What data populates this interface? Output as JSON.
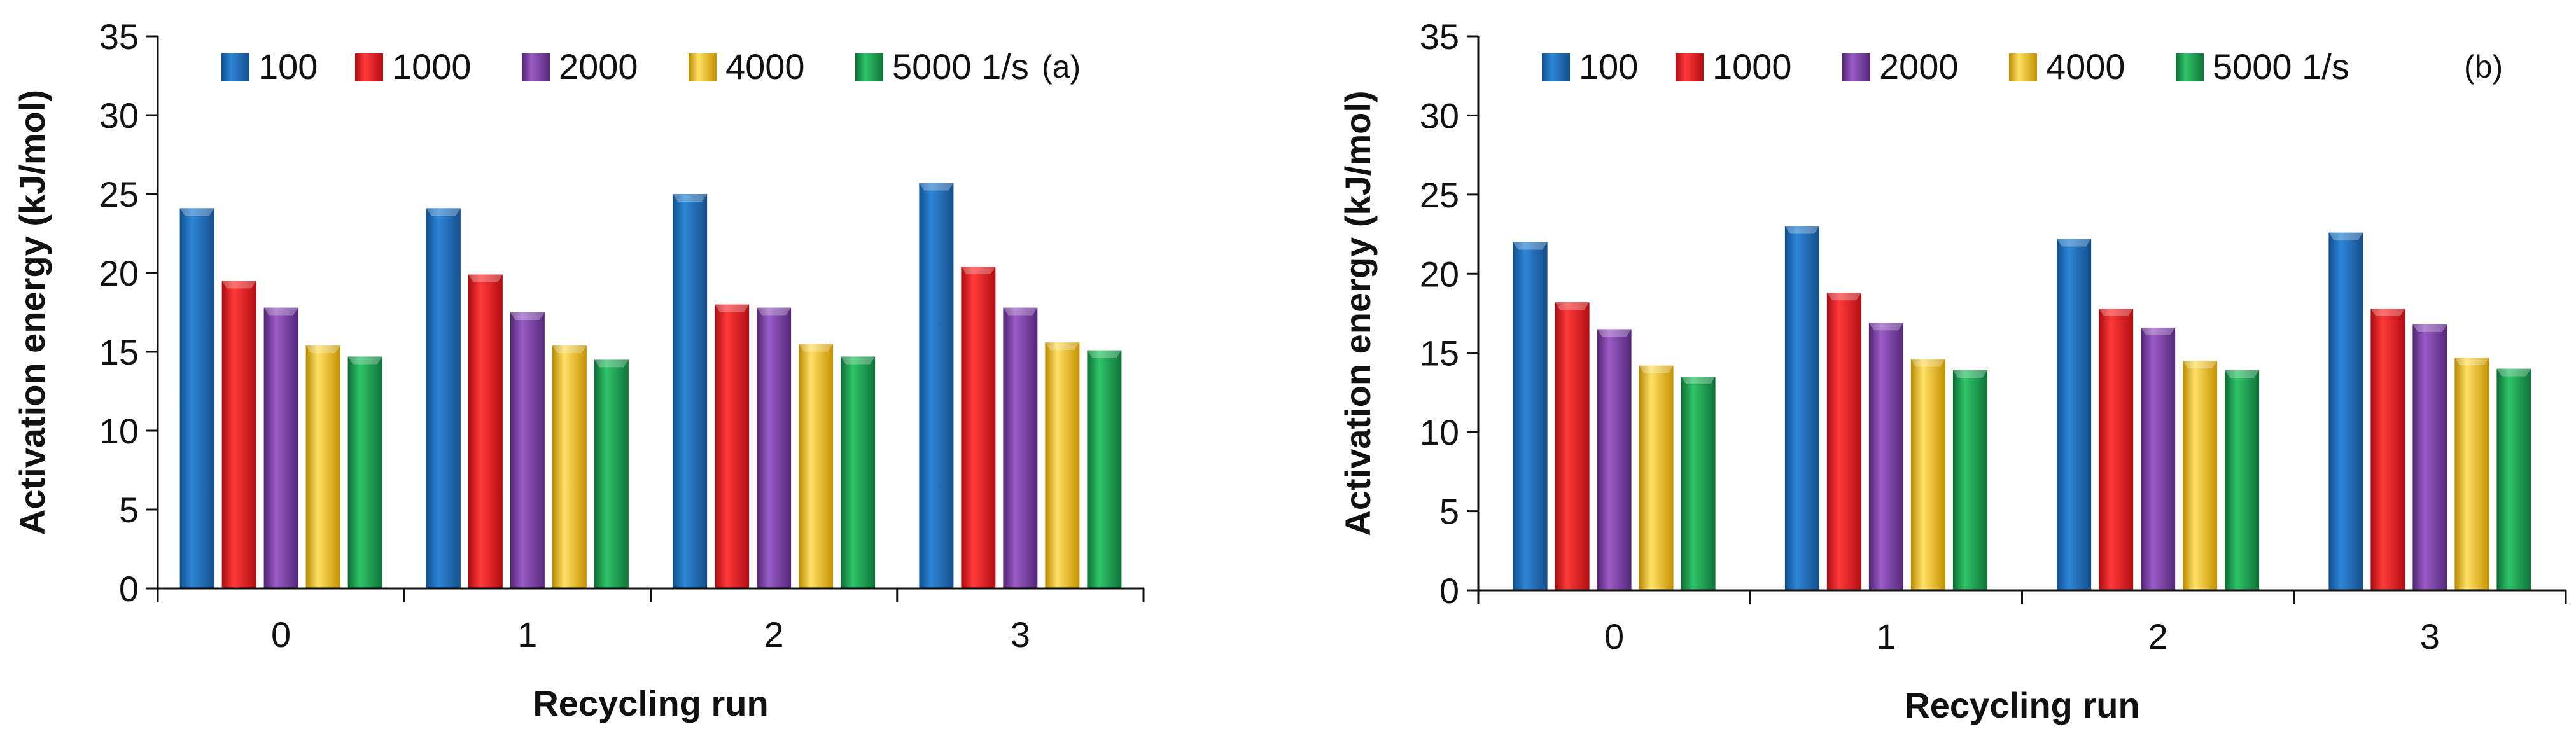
{
  "chart_data": [
    {
      "type": "bar",
      "panel_label": "(a)",
      "categories": [
        "0",
        "1",
        "2",
        "3"
      ],
      "series": [
        {
          "name": "100",
          "values": [
            24.1,
            24.1,
            25.0,
            25.7
          ]
        },
        {
          "name": "1000",
          "values": [
            19.5,
            19.9,
            18.0,
            20.4
          ]
        },
        {
          "name": "2000",
          "values": [
            17.8,
            17.5,
            17.8,
            17.8
          ]
        },
        {
          "name": "4000",
          "values": [
            15.4,
            15.4,
            15.5,
            15.6
          ]
        },
        {
          "name": "5000 1/s",
          "values": [
            14.7,
            14.5,
            14.7,
            15.1
          ]
        }
      ],
      "xlabel": "Recycling run",
      "ylabel": "Activation energy  (kJ/mol)",
      "ylim": [
        0,
        35
      ],
      "yticks": [
        "0",
        "5",
        "10",
        "15",
        "20",
        "25",
        "30",
        "35"
      ],
      "legend_position": "top"
    },
    {
      "type": "bar",
      "panel_label": "(b)",
      "categories": [
        "0",
        "1",
        "2",
        "3"
      ],
      "series": [
        {
          "name": "100",
          "values": [
            22.0,
            23.0,
            22.2,
            22.6
          ]
        },
        {
          "name": "1000",
          "values": [
            18.2,
            18.8,
            17.8,
            17.8
          ]
        },
        {
          "name": "2000",
          "values": [
            16.5,
            16.9,
            16.6,
            16.8
          ]
        },
        {
          "name": "4000",
          "values": [
            14.2,
            14.6,
            14.5,
            14.7
          ]
        },
        {
          "name": "5000 1/s",
          "values": [
            13.5,
            13.9,
            13.9,
            14.0
          ]
        }
      ],
      "xlabel": "Recycling run",
      "ylabel": "Activation energy  (kJ/mol)",
      "ylim": [
        0,
        35
      ],
      "yticks": [
        "0",
        "5",
        "10",
        "15",
        "20",
        "25",
        "30",
        "35"
      ],
      "legend_position": "top"
    }
  ],
  "colors": {
    "series": [
      "#1f6fb8",
      "#e8141b",
      "#7a3ea3",
      "#f2c21a",
      "#17a050"
    ],
    "axis": "#111111"
  }
}
